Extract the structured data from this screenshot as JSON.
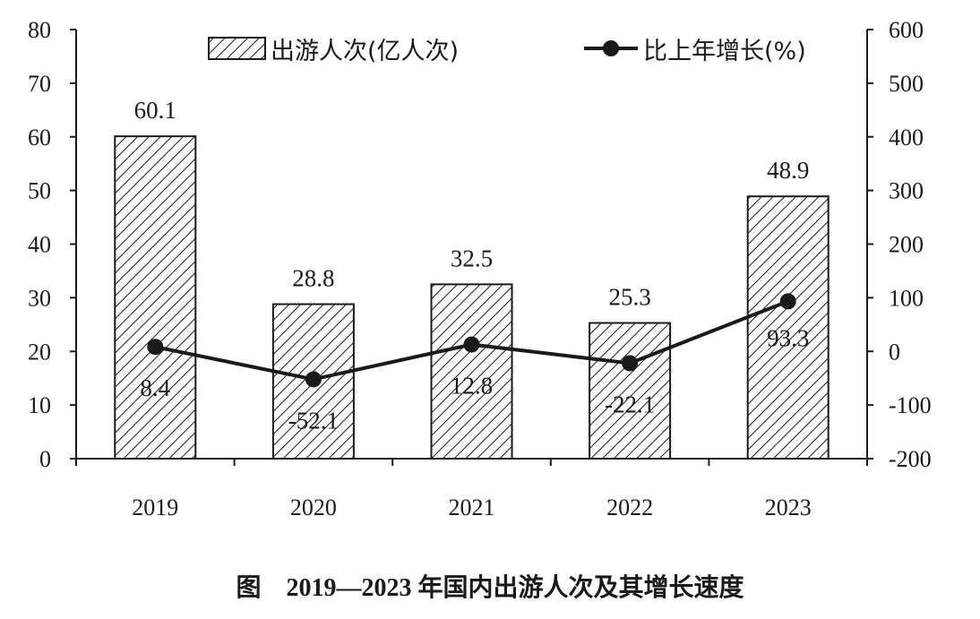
{
  "chart_data": {
    "type": "bar+line",
    "title": "图　2019—2023 年国内出游人次及其增长速度",
    "categories": [
      "2019",
      "2020",
      "2021",
      "2022",
      "2023"
    ],
    "series": [
      {
        "name": "出游人次(亿人次)",
        "type": "bar",
        "axis": "left",
        "values": [
          60.1,
          28.8,
          32.5,
          25.3,
          48.9
        ],
        "labels": [
          "60.1",
          "28.8",
          "32.5",
          "25.3",
          "48.9"
        ],
        "pattern": "diagonal-hatch"
      },
      {
        "name": "比上年增长(%)",
        "type": "line",
        "axis": "right",
        "values": [
          8.4,
          -52.1,
          12.8,
          -22.1,
          93.3
        ],
        "labels": [
          "8.4",
          "-52.1",
          "12.8",
          "-22.1",
          "93.3"
        ],
        "marker": "filled-circle"
      }
    ],
    "y_left": {
      "range": [
        0,
        80
      ],
      "ticks": [
        "0",
        "10",
        "20",
        "30",
        "40",
        "50",
        "60",
        "70",
        "80"
      ]
    },
    "y_right": {
      "range": [
        -200,
        600
      ],
      "ticks": [
        "-200",
        "-100",
        "0",
        "100",
        "200",
        "300",
        "400",
        "500",
        "600"
      ]
    },
    "legend_placement": "top",
    "grid": false,
    "colors": {
      "ink": "#1a1a1a",
      "background": "#ffffff"
    }
  }
}
